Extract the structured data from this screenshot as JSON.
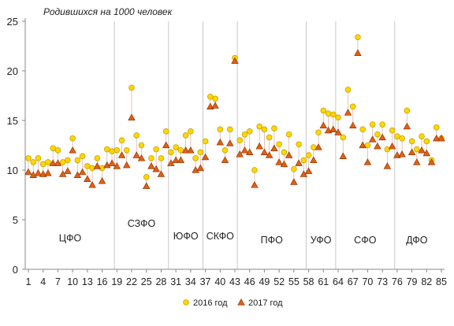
{
  "chart_data": {
    "type": "scatter",
    "title": "Родившихся на 1000 человек",
    "xlabel": "",
    "ylabel": "",
    "xlim": [
      1,
      85
    ],
    "ylim": [
      0,
      25
    ],
    "y_ticks": [
      0,
      5,
      10,
      15,
      20,
      25
    ],
    "x_ticks": [
      1,
      4,
      7,
      10,
      13,
      16,
      19,
      22,
      25,
      28,
      31,
      34,
      37,
      40,
      43,
      46,
      49,
      52,
      55,
      58,
      61,
      64,
      67,
      70,
      73,
      76,
      79,
      82,
      85
    ],
    "grid": "vertical lines at district boundaries",
    "legend_position": "bottom",
    "district_boundaries": [
      18.5,
      29.5,
      36.5,
      43.5,
      57.5,
      63.5,
      75.5
    ],
    "districts": [
      {
        "label": "ЦФО",
        "x": 9.5,
        "y": 2.8
      },
      {
        "label": "СЗФО",
        "x": 24,
        "y": 4.3
      },
      {
        "label": "ЮФО",
        "x": 33,
        "y": 3.0
      },
      {
        "label": "СКФО",
        "x": 40,
        "y": 3.0
      },
      {
        "label": "ПФО",
        "x": 50.5,
        "y": 2.6
      },
      {
        "label": "УФО",
        "x": 60.5,
        "y": 2.6
      },
      {
        "label": "СФО",
        "x": 69.5,
        "y": 2.6
      },
      {
        "label": "ДФО",
        "x": 80,
        "y": 2.6
      }
    ],
    "series": [
      {
        "name": "2016 год",
        "color": "#ffd700",
        "edge": "#c9a000",
        "marker": "circle",
        "x": [
          1,
          2,
          3,
          4,
          5,
          6,
          7,
          8,
          9,
          10,
          11,
          12,
          13,
          14,
          15,
          16,
          17,
          18,
          19,
          20,
          21,
          22,
          23,
          24,
          25,
          26,
          27,
          28,
          29,
          30,
          31,
          32,
          33,
          34,
          35,
          36,
          37,
          38,
          39,
          40,
          41,
          42,
          43,
          44,
          45,
          46,
          47,
          48,
          49,
          50,
          51,
          52,
          53,
          54,
          55,
          56,
          57,
          58,
          59,
          60,
          61,
          62,
          63,
          64,
          65,
          66,
          67,
          68,
          69,
          70,
          71,
          72,
          73,
          74,
          75,
          76,
          77,
          78,
          79,
          80,
          81,
          82,
          83,
          84,
          85
        ],
        "y": [
          11.2,
          10.8,
          11.2,
          10.6,
          10.8,
          12.2,
          12.0,
          10.8,
          11.0,
          13.2,
          11.0,
          11.4,
          10.4,
          10.2,
          11.2,
          10.2,
          12.1,
          11.9,
          12.0,
          13.0,
          12.0,
          18.3,
          13.5,
          12.5,
          9.3,
          11.2,
          12.1,
          11.2,
          13.9,
          11.8,
          12.3,
          12.0,
          13.5,
          13.9,
          11.2,
          11.8,
          12.9,
          17.4,
          17.2,
          14.1,
          12.0,
          14.1,
          21.3,
          13.0,
          13.6,
          13.9,
          10.0,
          14.4,
          14.1,
          13.3,
          14.2,
          12.6,
          11.8,
          13.6,
          10.1,
          12.6,
          11.0,
          11.5,
          12.3,
          13.8,
          16.0,
          15.7,
          15.6,
          15.3,
          13.3,
          18.1,
          16.4,
          23.4,
          14.1,
          12.5,
          14.6,
          13.6,
          14.6,
          12.1,
          14.0,
          13.4,
          13.2,
          16.0,
          12.9,
          12.1,
          13.4,
          12.9,
          11.0,
          14.3,
          13.2
        ]
      },
      {
        "name": "2017 год",
        "color": "#e06010",
        "edge": "#8a2a00",
        "marker": "triangle",
        "x": [
          1,
          2,
          3,
          4,
          5,
          6,
          7,
          8,
          9,
          10,
          11,
          12,
          13,
          14,
          15,
          16,
          17,
          18,
          19,
          20,
          21,
          22,
          23,
          24,
          25,
          26,
          27,
          28,
          29,
          30,
          31,
          32,
          33,
          34,
          35,
          36,
          37,
          38,
          39,
          40,
          41,
          42,
          43,
          44,
          45,
          46,
          47,
          48,
          49,
          50,
          51,
          52,
          53,
          54,
          55,
          56,
          57,
          58,
          59,
          60,
          61,
          62,
          63,
          64,
          65,
          66,
          67,
          68,
          69,
          70,
          71,
          72,
          73,
          74,
          75,
          76,
          77,
          78,
          79,
          80,
          81,
          82,
          83,
          84,
          85
        ],
        "y": [
          9.8,
          9.5,
          9.7,
          9.6,
          9.7,
          10.7,
          10.7,
          9.6,
          9.9,
          12.0,
          9.5,
          9.8,
          9.1,
          8.5,
          10.4,
          8.9,
          10.5,
          10.7,
          10.4,
          11.5,
          10.5,
          15.3,
          11.5,
          11.2,
          8.4,
          10.4,
          10.1,
          9.6,
          12.5,
          10.7,
          11.0,
          11.0,
          12.0,
          12.0,
          10.0,
          10.2,
          11.3,
          16.4,
          16.5,
          12.8,
          11.0,
          12.7,
          21.0,
          11.6,
          12.0,
          11.8,
          8.5,
          12.4,
          11.8,
          11.5,
          12.2,
          10.8,
          10.6,
          11.5,
          8.8,
          10.7,
          9.6,
          9.9,
          11.0,
          12.3,
          14.5,
          14.0,
          14.1,
          13.8,
          11.4,
          15.8,
          14.5,
          21.8,
          12.5,
          10.8,
          13.1,
          12.4,
          13.3,
          10.4,
          12.4,
          11.5,
          11.6,
          14.4,
          11.8,
          10.8,
          12.0,
          11.7,
          10.8,
          13.2,
          13.2
        ]
      }
    ]
  }
}
